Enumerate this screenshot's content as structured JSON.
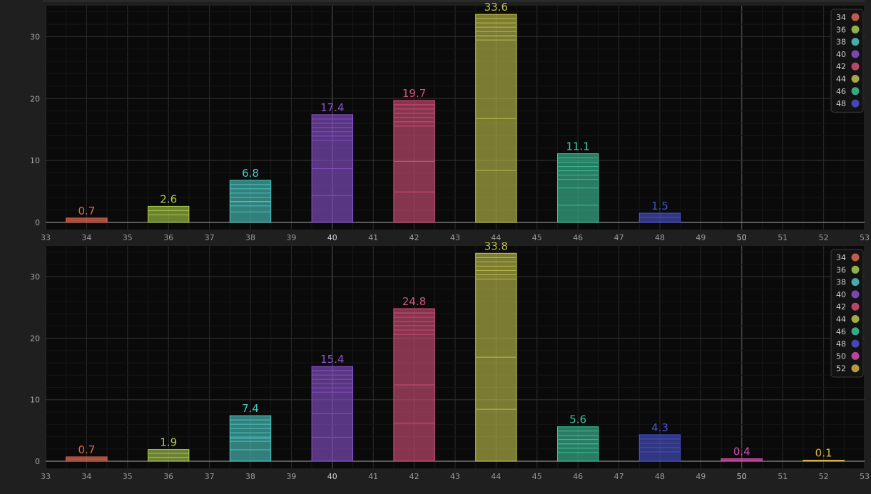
{
  "chart_data": [
    {
      "type": "bar",
      "x": [
        34,
        36,
        38,
        40,
        42,
        44,
        46,
        48
      ],
      "values": [
        0.7,
        2.6,
        6.8,
        17.4,
        19.7,
        33.6,
        11.1,
        1.5
      ],
      "data_labels": [
        "0.7",
        "2.6",
        "6.8",
        "17.4",
        "19.7",
        "33.6",
        "11.1",
        "1.5"
      ],
      "colors": [
        "#e06a55",
        "#a9cc4c",
        "#4ec8c4",
        "#8a52cc",
        "#d4517a",
        "#c2c24e",
        "#3ec49a",
        "#4b52cc"
      ],
      "xlim": [
        33,
        53
      ],
      "xticks": [
        "33",
        "34",
        "35",
        "36",
        "37",
        "38",
        "39",
        "40",
        "41",
        "42",
        "43",
        "44",
        "45",
        "46",
        "47",
        "48",
        "49",
        "50",
        "51",
        "52",
        "53"
      ],
      "ylim": [
        0,
        35
      ],
      "yticks": [
        "0",
        "10",
        "20",
        "30"
      ],
      "legend": [
        "34",
        "36",
        "38",
        "40",
        "42",
        "44",
        "46",
        "48"
      ],
      "legend_position": "top-right",
      "grid": true
    },
    {
      "type": "bar",
      "x": [
        34,
        36,
        38,
        40,
        42,
        44,
        46,
        48,
        50,
        52
      ],
      "values": [
        0.7,
        1.9,
        7.4,
        15.4,
        24.8,
        33.8,
        5.6,
        4.3,
        0.4,
        0.1
      ],
      "data_labels": [
        "0.7",
        "1.9",
        "7.4",
        "15.4",
        "24.8",
        "33.8",
        "5.6",
        "4.3",
        "0.4",
        "0.1"
      ],
      "colors": [
        "#e06a55",
        "#a9cc4c",
        "#4ec8c4",
        "#8a52cc",
        "#d4517a",
        "#c2c24e",
        "#3ec49a",
        "#4b52cc",
        "#d64fb0",
        "#d4b444"
      ],
      "xlim": [
        33,
        53
      ],
      "xticks": [
        "33",
        "34",
        "35",
        "36",
        "37",
        "38",
        "39",
        "40",
        "41",
        "42",
        "43",
        "44",
        "45",
        "46",
        "47",
        "48",
        "49",
        "50",
        "51",
        "52",
        "53"
      ],
      "ylim": [
        0,
        35
      ],
      "yticks": [
        "0",
        "10",
        "20",
        "30"
      ],
      "legend": [
        "34",
        "36",
        "38",
        "40",
        "42",
        "44",
        "46",
        "48",
        "50",
        "52"
      ],
      "legend_position": "top-right",
      "grid": true
    }
  ]
}
